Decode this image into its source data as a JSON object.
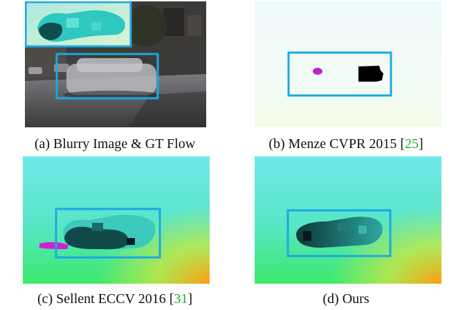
{
  "figure": {
    "panels": [
      {
        "id": "a",
        "caption_text": "(a) Blurry Image & GT Flow",
        "cite": ""
      },
      {
        "id": "b",
        "caption_text": "(b) Menze CVPR 2015 [",
        "cite": "25",
        "close": "]"
      },
      {
        "id": "c",
        "caption_text": "(c) Sellent ECCV 2016 [",
        "cite": "31",
        "close": "]"
      },
      {
        "id": "d",
        "caption_text": "(d) Ours",
        "cite": ""
      }
    ]
  },
  "colors": {
    "box": "#1aa7e6",
    "citation": "#20b020",
    "flow_cyan": "#3fe0d6",
    "flow_dark": "#0d4a48",
    "magenta": "#d020d0"
  }
}
